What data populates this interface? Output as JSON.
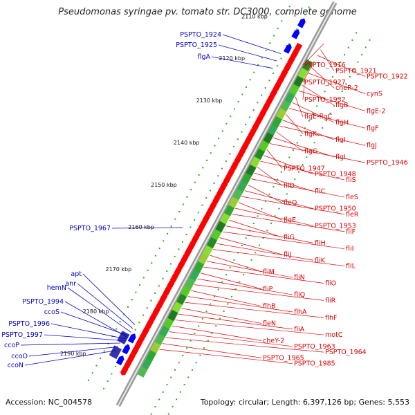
{
  "title": "Pseudomonas syringae pv. tomato str. DC3000, complete genome",
  "accession": "Accession: NC_004578",
  "topology": "Topology: circular; Length: 6,397,126 bp; Genes: 5,553",
  "colors": {
    "forward": "#0000ff",
    "reverse": "#ff0000",
    "leader_blue": "#0000cc",
    "leader_red": "#dd0000",
    "backbone": "#aaaaaa",
    "tick": "#22aa22"
  },
  "kbp_labels": [
    "2110 kbp",
    "2120 kbp",
    "2130 kbp",
    "2140 kbp",
    "2150 kbp",
    "2160 kbp",
    "2170 kbp",
    "2180 kbp",
    "2190 kbp"
  ],
  "blue_labels": [
    "PSPTO_1924",
    "PSPTO_1925",
    "flgA",
    "PSPTO_1967",
    "apt",
    "anr",
    "hemN",
    "ccoS",
    "PSPTO_1994",
    "PSPTO_1996",
    "PSPTO_1997",
    "ccoP",
    "ccoO",
    "ccoN"
  ],
  "red_labels": [
    "PSPTO_1916",
    "PSPTO_1921",
    "PSPTO_1922",
    "PSPTO_1927",
    "cheR-2",
    "cynS",
    "PSPTO_1932",
    "flgB",
    "flgE-2",
    "flgE-flgC",
    "flgH",
    "flgF",
    "flgK",
    "flgI",
    "flgJ",
    "flgG",
    "flgL",
    "PSPTO_1946",
    "PSPTO_1947",
    "PSPTO_1948",
    "fliS",
    "fliD",
    "fliC",
    "fleS",
    "fleQ",
    "PSPTO_1950",
    "fleR",
    "flgE",
    "PSPTO_1953",
    "fliF",
    "fliG",
    "fliH",
    "fliI",
    "fliJ",
    "fliK",
    "fliL",
    "fliM",
    "fliN",
    "fliO",
    "fliP",
    "fliQ",
    "fliR",
    "flhB",
    "flhA",
    "flhF",
    "fleN",
    "fliA",
    "motC",
    "cheY-2",
    "PSPTO_1963",
    "PSPTO_1964",
    "PSPTO_1965",
    "PSPTO_1985"
  ]
}
